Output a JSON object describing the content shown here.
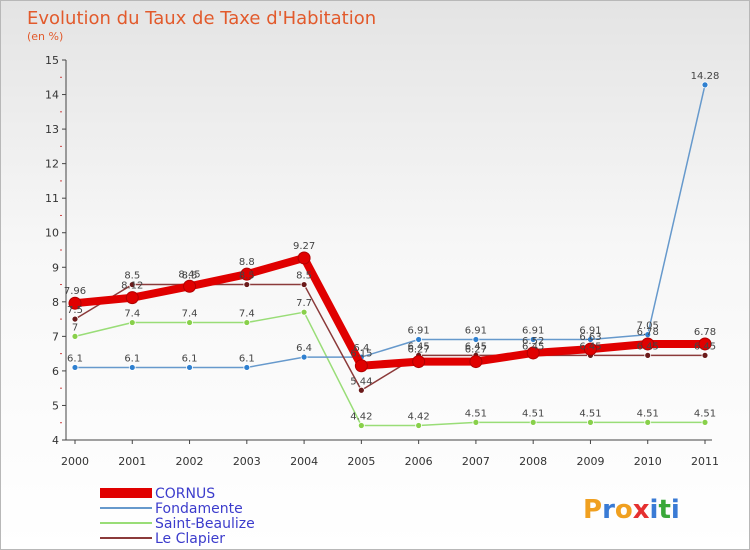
{
  "title": "Evolution du Taux de Taxe d'Habitation",
  "subtitle": "(en %)",
  "brand": "Proxiti",
  "brand_colors": [
    "#f0a020",
    "#3a7bd5",
    "#f0a020",
    "#e53030",
    "#3a7bd5",
    "#3aa83a",
    "#3a7bd5"
  ],
  "chart_data": {
    "type": "line",
    "title": "Evolution du Taux de Taxe d'Habitation",
    "ylabel": "(en %)",
    "xlabel": "",
    "ylim": [
      4,
      15
    ],
    "yticks": [
      "4",
      "5",
      "6",
      "7",
      "8",
      "9",
      "10",
      "11",
      "12",
      "13",
      "14",
      "15"
    ],
    "x": [
      "2000",
      "2001",
      "2002",
      "2003",
      "2004",
      "2005",
      "2006",
      "2007",
      "2008",
      "2009",
      "2010",
      "2011"
    ],
    "series": [
      {
        "name": "CORNUS",
        "color": "#e00000",
        "marker": "#e00000",
        "values": [
          7.96,
          8.12,
          8.45,
          8.8,
          9.27,
          6.15,
          6.27,
          6.27,
          6.52,
          6.63,
          6.78,
          6.78
        ],
        "labels": [
          "7.96",
          "8.12",
          "8.45",
          "8.8",
          "9.27",
          "6.15",
          "6.27",
          "6.27",
          "6.52",
          "6.63",
          "6.78",
          "6.78"
        ]
      },
      {
        "name": "Fondamente",
        "color": "#6699cc",
        "marker": "#2f80d0",
        "values": [
          6.1,
          6.1,
          6.1,
          6.1,
          6.4,
          6.4,
          6.91,
          6.91,
          6.91,
          6.91,
          7.05,
          14.28
        ],
        "labels": [
          "6.1",
          "6.1",
          "6.1",
          "6.1",
          "6.4",
          "6.4",
          "6.91",
          "6.91",
          "6.91",
          "6.91",
          "7.05",
          "14.28"
        ]
      },
      {
        "name": "Saint-Beaulize",
        "color": "#99dd77",
        "marker": "#88d04a",
        "values": [
          7,
          7.4,
          7.4,
          7.4,
          7.7,
          4.42,
          4.42,
          4.51,
          4.51,
          4.51,
          4.51,
          4.51
        ],
        "labels": [
          "7",
          "7.4",
          "7.4",
          "7.4",
          "7.7",
          "4.42",
          "4.42",
          "4.51",
          "4.51",
          "4.51",
          "4.51",
          "4.51"
        ]
      },
      {
        "name": "Le Clapier",
        "color": "#8b3a3a",
        "marker": "#6b1a1a",
        "values": [
          7.5,
          8.5,
          8.5,
          8.5,
          8.5,
          5.44,
          6.45,
          6.45,
          6.45,
          6.45,
          6.45,
          6.45
        ],
        "labels": [
          "7.5",
          "8.5",
          "8.5",
          "8.5",
          "8.5",
          "5.44",
          "6.45",
          "6.45",
          "6.45",
          "6.45",
          "6.45",
          "6.45"
        ]
      }
    ],
    "legend": [
      "CORNUS",
      "Fondamente",
      "Saint-Beaulize",
      "Le Clapier"
    ],
    "legend_position": "bottom-left",
    "grid": false
  }
}
